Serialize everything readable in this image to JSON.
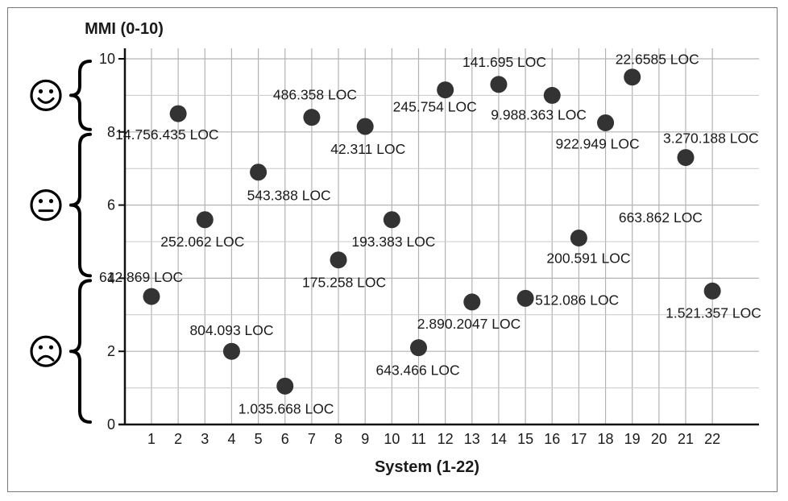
{
  "chart_data": {
    "type": "scatter",
    "title": "",
    "xlabel": "System (1-22)",
    "ylabel": "MMI (0-10)",
    "xlim": [
      0,
      22
    ],
    "ylim": [
      0,
      10
    ],
    "x_ticks": [
      "1",
      "2",
      "3",
      "4",
      "5",
      "6",
      "7",
      "8",
      "9",
      "10",
      "11",
      "12",
      "13",
      "14",
      "15",
      "16",
      "17",
      "18",
      "19",
      "20",
      "21",
      "22"
    ],
    "y_ticks": [
      "0",
      "2",
      "4",
      "6",
      "8",
      "10"
    ],
    "grid": true,
    "bands": [
      {
        "name": "happy-face-icon",
        "y_range": [
          8,
          10
        ]
      },
      {
        "name": "neutral-face-icon",
        "y_range": [
          4,
          8
        ]
      },
      {
        "name": "sad-face-icon",
        "y_range": [
          0,
          4
        ]
      }
    ],
    "marker_color": "#333333",
    "points": [
      {
        "x": 1,
        "y": 3.5,
        "label": "612.869 LOC"
      },
      {
        "x": 2,
        "y": 8.5,
        "label": "14.756.435 LOC"
      },
      {
        "x": 3,
        "y": 5.6,
        "label": "252.062 LOC"
      },
      {
        "x": 4,
        "y": 2.0,
        "label": "804.093 LOC"
      },
      {
        "x": 5,
        "y": 6.9,
        "label": "543.388 LOC"
      },
      {
        "x": 6,
        "y": 1.05,
        "label": "1.035.668 LOC"
      },
      {
        "x": 7,
        "y": 8.4,
        "label": "486.358 LOC"
      },
      {
        "x": 8,
        "y": 4.5,
        "label": "175.258 LOC"
      },
      {
        "x": 9,
        "y": 8.15,
        "label": "42.311 LOC"
      },
      {
        "x": 10,
        "y": 5.6,
        "label": "193.383 LOC"
      },
      {
        "x": 11,
        "y": 2.1,
        "label": "643.466 LOC"
      },
      {
        "x": 12,
        "y": 9.15,
        "label": "245.754 LOC"
      },
      {
        "x": 13,
        "y": 3.35,
        "label": "2.890.2047 LOC"
      },
      {
        "x": 14,
        "y": 9.3,
        "label": "141.695 LOC"
      },
      {
        "x": 15,
        "y": 3.45,
        "label": "512.086 LOC"
      },
      {
        "x": 16,
        "y": 9.0,
        "label": "9.988.363 LOC"
      },
      {
        "x": 17,
        "y": 5.1,
        "label": "200.591 LOC"
      },
      {
        "x": 18,
        "y": 8.25,
        "label": "922.949 LOC"
      },
      {
        "x": 19,
        "y": 9.5,
        "label": "22.6585 LOC"
      },
      {
        "x": 20,
        "y": null,
        "label": "663.862 LOC"
      },
      {
        "x": 21,
        "y": 7.3,
        "label": "3.270.188 LOC"
      },
      {
        "x": 22,
        "y": 3.65,
        "label": "1.521.357 LOC"
      }
    ]
  }
}
